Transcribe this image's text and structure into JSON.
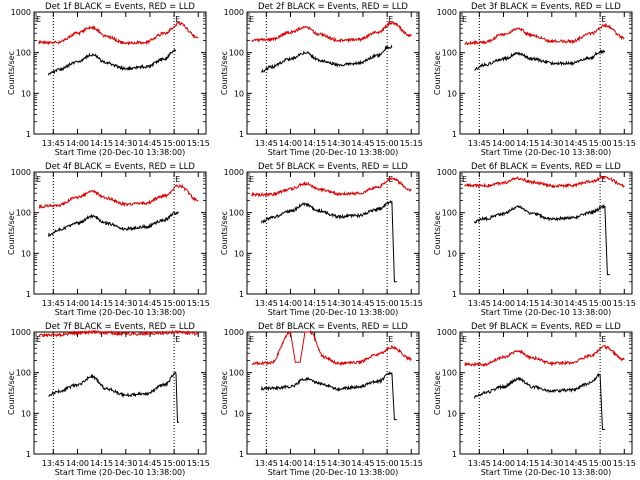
{
  "figure": {
    "xlabel": "Start Time (20-Dec-10 13:38:00)",
    "ylabel": "Counts/sec"
  },
  "chart_data": [
    {
      "type": "line",
      "title": "Det 1f BLACK = Events, RED = LLD",
      "xticks": [
        "13:45",
        "14:00",
        "14:15",
        "14:30",
        "14:45",
        "15:00",
        "15:15"
      ],
      "yticks": [
        "1",
        "10",
        "100",
        "1000"
      ],
      "ylim": [
        1,
        1000
      ],
      "markers": [
        "E",
        "E"
      ],
      "series": [
        {
          "name": "Events",
          "color": "#000000",
          "x": [
            13.7,
            13.8,
            14.0,
            14.15,
            14.3,
            14.5,
            14.7,
            14.9,
            15.0,
            15.02
          ],
          "values": [
            30,
            38,
            60,
            90,
            55,
            40,
            45,
            70,
            110,
            115
          ]
        },
        {
          "name": "LLD",
          "color": "#dd0000",
          "x": [
            13.6,
            13.8,
            14.0,
            14.15,
            14.3,
            14.5,
            14.7,
            14.9,
            15.05,
            15.25
          ],
          "values": [
            180,
            180,
            300,
            420,
            250,
            170,
            180,
            300,
            520,
            230
          ]
        }
      ]
    },
    {
      "type": "line",
      "title": "Det 2f BLACK = Events, RED = LLD",
      "xticks": [
        "13:45",
        "14:00",
        "14:15",
        "14:30",
        "14:45",
        "15:00",
        "15:15"
      ],
      "yticks": [
        "1",
        "10",
        "100",
        "1000"
      ],
      "ylim": [
        1,
        1000
      ],
      "markers": [
        "E",
        "E"
      ],
      "series": [
        {
          "name": "Events",
          "color": "#000000",
          "x": [
            13.7,
            13.8,
            14.0,
            14.15,
            14.3,
            14.5,
            14.7,
            14.9,
            15.0,
            15.05
          ],
          "values": [
            35,
            45,
            70,
            100,
            65,
            50,
            55,
            85,
            130,
            135
          ]
        },
        {
          "name": "LLD",
          "color": "#dd0000",
          "x": [
            13.6,
            13.8,
            14.0,
            14.15,
            14.3,
            14.5,
            14.7,
            14.9,
            15.05,
            15.25
          ],
          "values": [
            200,
            210,
            320,
            430,
            280,
            200,
            210,
            320,
            540,
            260
          ]
        }
      ]
    },
    {
      "type": "line",
      "title": "Det 3f BLACK = Events, RED = LLD",
      "xticks": [
        "13:45",
        "14:00",
        "14:15",
        "14:30",
        "14:45",
        "15:00",
        "15:15"
      ],
      "yticks": [
        "1",
        "10",
        "100",
        "1000"
      ],
      "ylim": [
        1,
        1000
      ],
      "markers": [
        "E",
        "E"
      ],
      "series": [
        {
          "name": "Events",
          "color": "#000000",
          "x": [
            13.7,
            13.8,
            14.0,
            14.15,
            14.3,
            14.5,
            14.7,
            14.9,
            15.0,
            15.05
          ],
          "values": [
            40,
            50,
            70,
            95,
            70,
            55,
            55,
            75,
            105,
            110
          ]
        },
        {
          "name": "LLD",
          "color": "#dd0000",
          "x": [
            13.6,
            13.8,
            14.0,
            14.15,
            14.3,
            14.5,
            14.7,
            14.9,
            15.05,
            15.25
          ],
          "values": [
            170,
            180,
            280,
            380,
            260,
            190,
            190,
            290,
            470,
            230
          ]
        }
      ]
    },
    {
      "type": "line",
      "title": "Det 4f BLACK = Events, RED = LLD",
      "xticks": [
        "13:45",
        "14:00",
        "14:15",
        "14:30",
        "14:45",
        "15:00",
        "15:15"
      ],
      "yticks": [
        "1",
        "10",
        "100",
        "1000"
      ],
      "ylim": [
        1,
        1000
      ],
      "markers": [
        "E",
        "E"
      ],
      "series": [
        {
          "name": "Events",
          "color": "#000000",
          "x": [
            13.7,
            13.8,
            14.0,
            14.15,
            14.3,
            14.5,
            14.7,
            14.9,
            15.0,
            15.05
          ],
          "values": [
            28,
            38,
            55,
            80,
            55,
            40,
            45,
            65,
            95,
            100
          ]
        },
        {
          "name": "LLD",
          "color": "#dd0000",
          "x": [
            13.6,
            13.8,
            14.0,
            14.15,
            14.3,
            14.5,
            14.7,
            14.9,
            15.05,
            15.25
          ],
          "values": [
            140,
            150,
            240,
            330,
            230,
            160,
            170,
            260,
            460,
            200
          ]
        }
      ]
    },
    {
      "type": "line",
      "title": "Det 5f BLACK = Events, RED = LLD",
      "xticks": [
        "13:45",
        "14:00",
        "14:15",
        "14:30",
        "14:45",
        "15:00",
        "15:15"
      ],
      "yticks": [
        "1",
        "10",
        "100",
        "1000"
      ],
      "ylim": [
        1,
        1000
      ],
      "markers": [
        "E",
        "E"
      ],
      "series": [
        {
          "name": "Events",
          "color": "#000000",
          "x": [
            13.7,
            13.8,
            14.0,
            14.15,
            14.3,
            14.5,
            14.7,
            14.9,
            15.05,
            15.1
          ],
          "values": [
            60,
            75,
            110,
            160,
            110,
            80,
            85,
            120,
            190,
            2
          ]
        },
        {
          "name": "LLD",
          "color": "#dd0000",
          "x": [
            13.6,
            13.8,
            14.0,
            14.15,
            14.3,
            14.5,
            14.7,
            14.9,
            15.05,
            15.25
          ],
          "values": [
            280,
            280,
            380,
            520,
            380,
            290,
            300,
            420,
            680,
            360
          ]
        }
      ]
    },
    {
      "type": "line",
      "title": "Det 6f BLACK = Events, RED = LLD",
      "xticks": [
        "13:45",
        "14:00",
        "14:15",
        "14:30",
        "14:45",
        "15:00",
        "15:15"
      ],
      "yticks": [
        "1",
        "10",
        "100",
        "1000"
      ],
      "ylim": [
        1,
        1000
      ],
      "markers": [
        "E",
        "E"
      ],
      "series": [
        {
          "name": "Events",
          "color": "#000000",
          "x": [
            13.7,
            13.8,
            14.0,
            14.15,
            14.3,
            14.5,
            14.7,
            14.9,
            15.05,
            15.1
          ],
          "values": [
            60,
            70,
            95,
            140,
            95,
            70,
            75,
            100,
            140,
            3
          ]
        },
        {
          "name": "LLD",
          "color": "#dd0000",
          "x": [
            13.6,
            13.8,
            14.0,
            14.15,
            14.3,
            14.5,
            14.7,
            14.9,
            15.05,
            15.25
          ],
          "values": [
            480,
            460,
            540,
            700,
            560,
            460,
            470,
            580,
            740,
            460
          ]
        }
      ]
    },
    {
      "type": "line",
      "title": "Det 7f BLACK = Events, RED = LLD",
      "xticks": [
        "13:45",
        "14:00",
        "14:15",
        "14:30",
        "14:45",
        "15:00",
        "15:15"
      ],
      "yticks": [
        "1",
        "10",
        "100",
        "1000"
      ],
      "ylim": [
        1,
        1000
      ],
      "markers": [
        "E",
        "E"
      ],
      "series": [
        {
          "name": "Events",
          "color": "#000000",
          "x": [
            13.7,
            13.8,
            14.0,
            14.15,
            14.3,
            14.5,
            14.7,
            14.9,
            15.02,
            15.05
          ],
          "values": [
            28,
            35,
            50,
            80,
            40,
            28,
            30,
            50,
            95,
            6
          ]
        },
        {
          "name": "LLD",
          "color": "#dd0000",
          "x": [
            13.6,
            13.8,
            14.0,
            14.15,
            14.3,
            14.5,
            14.7,
            14.9,
            15.05,
            15.25
          ],
          "values": [
            820,
            850,
            950,
            1000,
            960,
            900,
            900,
            950,
            1000,
            900
          ]
        }
      ]
    },
    {
      "type": "line",
      "title": "Det 8f BLACK = Events, RED = LLD",
      "xticks": [
        "13:45",
        "14:00",
        "14:15",
        "14:30",
        "14:45",
        "15:00",
        "15:15"
      ],
      "yticks": [
        "1",
        "10",
        "100",
        "1000"
      ],
      "ylim": [
        1,
        1000
      ],
      "markers": [
        "E",
        "E"
      ],
      "series": [
        {
          "name": "Events",
          "color": "#000000",
          "x": [
            13.7,
            13.8,
            14.0,
            14.15,
            14.3,
            14.5,
            14.7,
            14.9,
            15.05,
            15.1
          ],
          "values": [
            40,
            42,
            45,
            70,
            55,
            40,
            45,
            60,
            100,
            7
          ]
        },
        {
          "name": "LLD",
          "color": "#dd0000",
          "x": [
            13.6,
            13.8,
            14.0,
            14.1,
            14.2,
            14.35,
            14.5,
            14.7,
            14.9,
            15.05,
            15.25
          ],
          "values": [
            170,
            175,
            1000,
            180,
            1000,
            240,
            170,
            180,
            280,
            420,
            220
          ]
        }
      ]
    },
    {
      "type": "line",
      "title": "Det 9f BLACK = Events, RED = LLD",
      "xticks": [
        "13:45",
        "14:00",
        "14:15",
        "14:30",
        "14:45",
        "15:00",
        "15:15"
      ],
      "yticks": [
        "1",
        "10",
        "100",
        "1000"
      ],
      "ylim": [
        1,
        1000
      ],
      "markers": [
        "E",
        "E"
      ],
      "series": [
        {
          "name": "Events",
          "color": "#000000",
          "x": [
            13.7,
            13.8,
            14.0,
            14.15,
            14.3,
            14.5,
            14.7,
            14.9,
            15.0,
            15.05
          ],
          "values": [
            25,
            32,
            45,
            70,
            45,
            35,
            38,
            55,
            90,
            4
          ]
        },
        {
          "name": "LLD",
          "color": "#dd0000",
          "x": [
            13.6,
            13.8,
            14.0,
            14.15,
            14.3,
            14.5,
            14.7,
            14.9,
            15.05,
            15.25
          ],
          "values": [
            160,
            160,
            240,
            340,
            230,
            170,
            175,
            260,
            430,
            210
          ]
        }
      ]
    }
  ]
}
